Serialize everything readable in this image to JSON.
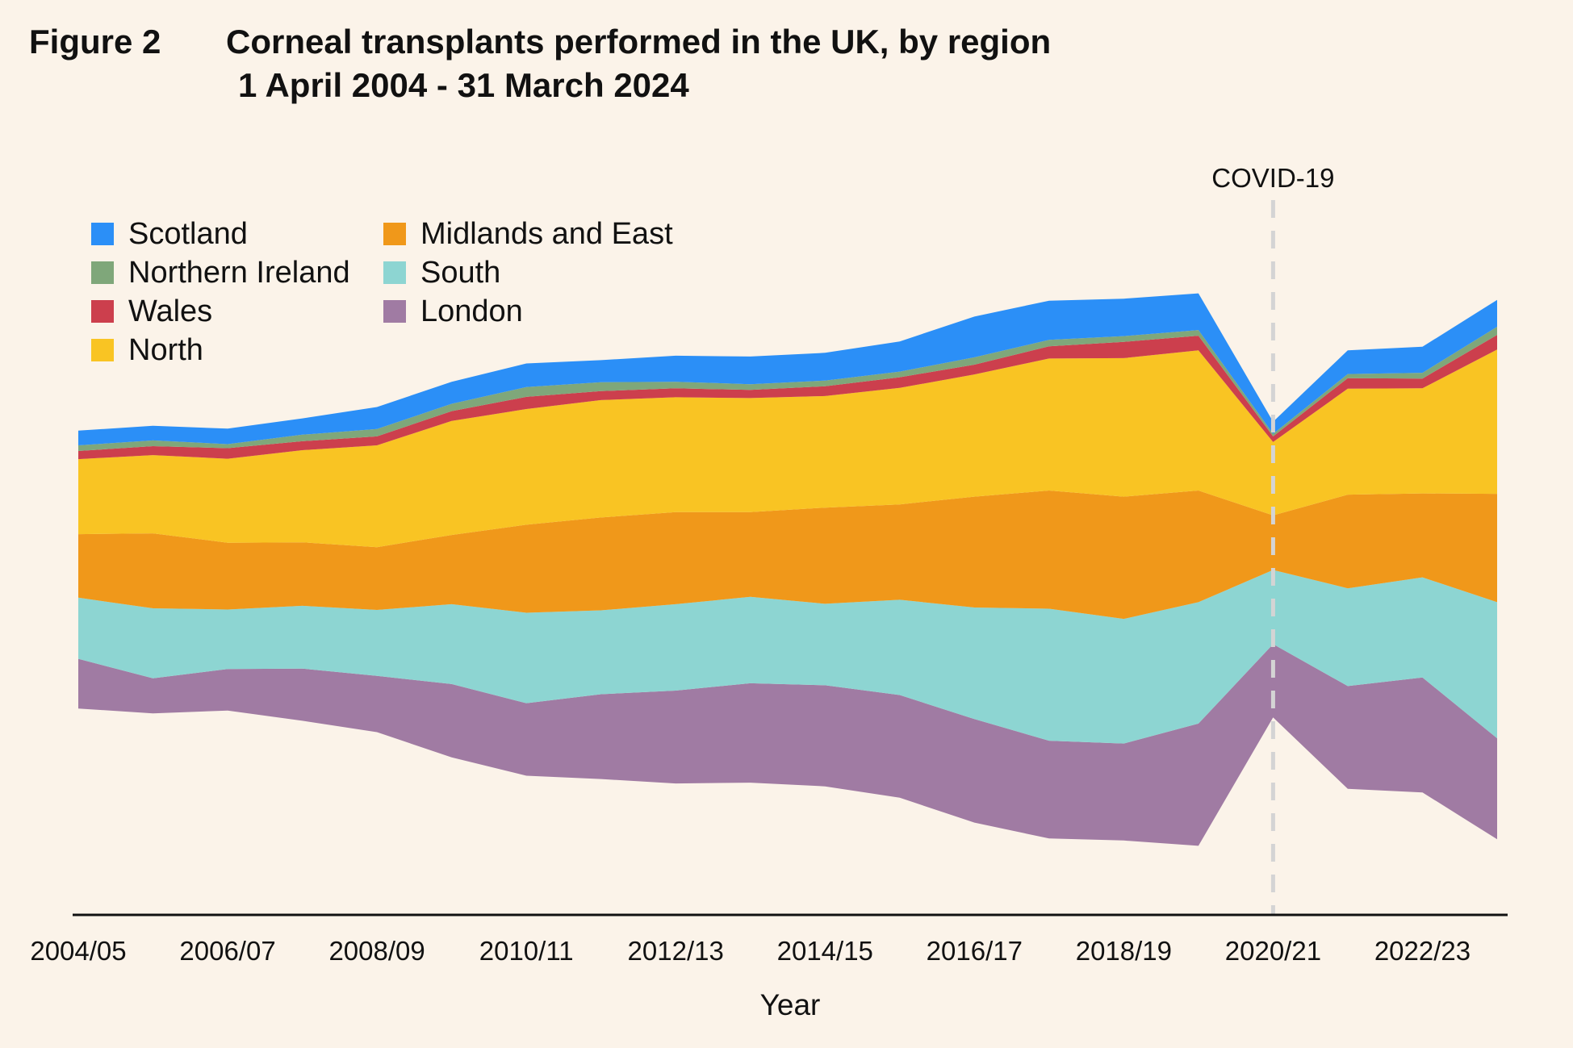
{
  "figure_label": "Figure 2",
  "title": "Corneal transplants performed in the UK, by region",
  "subtitle": "1 April 2004 - 31 March 2024",
  "chart_data": {
    "type": "area",
    "stacked": true,
    "baseline": "streamgraph",
    "title": "Corneal transplants performed in the UK, by region",
    "subtitle": "1 April 2004 - 31 March 2024",
    "xlabel": "Year",
    "ylabel": "",
    "y_axis_shown": false,
    "grid": false,
    "legend_position": "top-left",
    "x": [
      "2004/05",
      "2005/06",
      "2006/07",
      "2007/08",
      "2008/09",
      "2009/10",
      "2010/11",
      "2011/12",
      "2012/13",
      "2013/14",
      "2014/15",
      "2015/16",
      "2016/17",
      "2017/18",
      "2018/19",
      "2019/20",
      "2020/21",
      "2021/22",
      "2022/23",
      "2023/24"
    ],
    "x_tick_labels": [
      "2004/05",
      "2006/07",
      "2008/09",
      "2010/11",
      "2012/13",
      "2014/15",
      "2016/17",
      "2018/19",
      "2020/21",
      "2022/23"
    ],
    "series": [
      {
        "name": "London",
        "color": "#a07ba3",
        "values": [
          61,
          43,
          51,
          64,
          69,
          90,
          89,
          104,
          114,
          122,
          124,
          126,
          127,
          120,
          119,
          150,
          90,
          126,
          141,
          124
        ]
      },
      {
        "name": "South",
        "color": "#8dd5d2",
        "values": [
          75,
          86,
          73,
          77,
          81,
          98,
          111,
          103,
          106,
          106,
          100,
          117,
          137,
          162,
          153,
          149,
          91,
          120,
          123,
          167
        ]
      },
      {
        "name": "Midlands and East",
        "color": "#f0981a",
        "values": [
          78,
          92,
          82,
          78,
          77,
          85,
          108,
          114,
          113,
          104,
          118,
          117,
          136,
          145,
          150,
          137,
          67,
          115,
          103,
          133
        ]
      },
      {
        "name": "North",
        "color": "#f9c423",
        "values": [
          92,
          96,
          103,
          113,
          125,
          140,
          142,
          144,
          141,
          140,
          137,
          143,
          150,
          162,
          170,
          172,
          90,
          130,
          129,
          177
        ]
      },
      {
        "name": "Wales",
        "color": "#cc3f4d",
        "values": [
          10,
          11,
          13,
          11,
          11,
          12,
          15,
          11,
          11,
          10,
          12,
          13,
          12,
          15,
          20,
          18,
          7,
          13,
          12,
          18
        ]
      },
      {
        "name": "Northern Ireland",
        "color": "#7fa77a",
        "values": [
          7,
          7,
          5,
          8,
          9,
          9,
          12,
          11,
          8,
          7,
          7,
          7,
          9,
          8,
          7,
          7,
          3,
          5,
          7,
          10
        ]
      },
      {
        "name": "Scotland",
        "color": "#2b8ff7",
        "values": [
          18,
          18,
          19,
          20,
          27,
          27,
          29,
          27,
          32,
          34,
          34,
          37,
          50,
          48,
          46,
          45,
          15,
          29,
          32,
          33
        ]
      }
    ],
    "legend_order": [
      "Scotland",
      "Northern Ireland",
      "Wales",
      "North",
      "Midlands and East",
      "South",
      "London"
    ],
    "annotations": [
      {
        "label": "COVID-19",
        "x": "2020/21",
        "style": "dashed vertical line",
        "color": "#d4d4d4"
      }
    ]
  }
}
